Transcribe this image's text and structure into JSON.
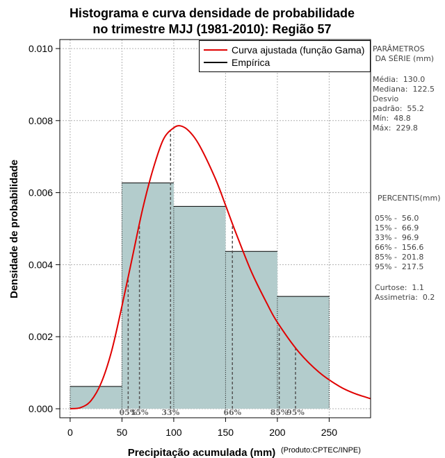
{
  "title_line1": "Histograma e curva densidade de probabilidade",
  "title_line2": "no trimestre MJJ (1981-2010): Região 57",
  "xlabel": "Precipitação acumulada (mm)",
  "ylabel": "Densidade de probabilidade",
  "credit": "(Produto:CPTEC/INPE)",
  "legend": {
    "fitted": "Curva ajustada (função Gama)",
    "empirical": "Empírica",
    "fitted_color": "#e00000",
    "empirical_color": "#000000"
  },
  "params": {
    "header1": "PARÂMETROS",
    "header2": " DA SÉRIE (mm)",
    "media": "Média:  130.0",
    "mediana": "Mediana:  122.5",
    "desvio1": "Desvio",
    "desvio2": "padrão:  55.2",
    "min": "Mín:  48.8",
    "max": "Máx:  229.8"
  },
  "percentis": {
    "header": "PERCENTIS(mm)",
    "p05": "05% -  56.0",
    "p15": "15% -  66.9",
    "p33": "33% -  96.9",
    "p66": "66% -  156.6",
    "p85": "85% -  201.8",
    "p95": "95% -  217.5",
    "curtose": "Curtose:  1.1",
    "assimetria": "Assimetria:  0.2"
  },
  "chart_data": {
    "type": "bar",
    "title": "Histograma e curva densidade de probabilidade no trimestre MJJ (1981-2010): Região 57",
    "xlabel": "Precipitação acumulada (mm)",
    "ylabel": "Densidade de probabilidade",
    "xlim": [
      -10,
      290
    ],
    "ylim": [
      -0.00025,
      0.01025
    ],
    "xticks": [
      0,
      50,
      100,
      150,
      200,
      250
    ],
    "xtick_labels": [
      "0",
      "50",
      "100",
      "150",
      "200",
      "250"
    ],
    "yticks": [
      0.0,
      0.002,
      0.004,
      0.006,
      0.008,
      0.01
    ],
    "ytick_labels": [
      "0.000",
      "0.002",
      "0.004",
      "0.006",
      "0.008",
      "0.010"
    ],
    "grid": true,
    "bar_color": "#b3cccc",
    "histogram": [
      {
        "x0": 0,
        "x1": 50,
        "density": 0.00062
      },
      {
        "x0": 50,
        "x1": 100,
        "density": 0.00627
      },
      {
        "x0": 100,
        "x1": 150,
        "density": 0.00562
      },
      {
        "x0": 150,
        "x1": 200,
        "density": 0.00437
      },
      {
        "x0": 200,
        "x1": 250,
        "density": 0.00312
      }
    ],
    "fitted_curve": {
      "name": "Curva ajustada (função Gama)",
      "x": [
        0,
        10,
        20,
        30,
        40,
        50,
        60,
        70,
        80,
        90,
        100,
        107,
        115,
        125,
        140,
        150,
        160,
        175,
        190,
        200,
        220,
        240,
        260,
        275,
        290
      ],
      "y": [
        0.0,
        3e-05,
        0.00022,
        0.00072,
        0.0016,
        0.00285,
        0.0042,
        0.00555,
        0.00665,
        0.00748,
        0.0078,
        0.00785,
        0.0077,
        0.0073,
        0.0064,
        0.00565,
        0.00488,
        0.0038,
        0.00292,
        0.0024,
        0.0016,
        0.00102,
        0.00062,
        0.00042,
        0.00028
      ]
    },
    "percentiles": [
      {
        "label": "05%",
        "x": 56.0
      },
      {
        "label": "15%",
        "x": 66.9
      },
      {
        "label": "33%",
        "x": 96.9
      },
      {
        "label": "66%",
        "x": 156.6
      },
      {
        "label": "85%",
        "x": 201.8
      },
      {
        "label": "95%",
        "x": 217.5
      }
    ]
  }
}
